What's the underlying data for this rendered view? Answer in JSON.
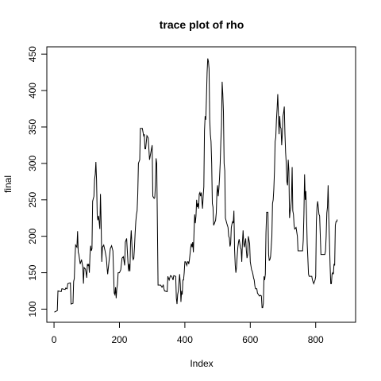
{
  "chart_data": {
    "type": "line",
    "title": "trace plot of rho",
    "xlabel": "Index",
    "ylabel": "final",
    "xlim": [
      -22,
      922
    ],
    "ylim": [
      82,
      460
    ],
    "xticks": [
      0,
      200,
      400,
      600,
      800
    ],
    "yticks": [
      100,
      150,
      200,
      250,
      300,
      350,
      400,
      450
    ],
    "grid": false,
    "series": [
      {
        "values": [
          [
            1,
            96
          ],
          [
            10,
            98
          ],
          [
            12,
            125
          ],
          [
            22,
            124
          ],
          [
            24,
            128
          ],
          [
            34,
            127
          ],
          [
            36,
            129
          ],
          [
            40,
            128
          ],
          [
            42,
            135
          ],
          [
            50,
            136
          ],
          [
            52,
            107
          ],
          [
            58,
            108
          ],
          [
            60,
            138
          ],
          [
            62,
            142
          ],
          [
            64,
            170
          ],
          [
            66,
            188
          ],
          [
            70,
            185
          ],
          [
            72,
            207
          ],
          [
            74,
            178
          ],
          [
            76,
            175
          ],
          [
            80,
            162
          ],
          [
            84,
            168
          ],
          [
            88,
            158
          ],
          [
            90,
            135
          ],
          [
            92,
            157
          ],
          [
            96,
            155
          ],
          [
            98,
            150
          ],
          [
            100,
            143
          ],
          [
            102,
            162
          ],
          [
            104,
            160
          ],
          [
            106,
            162
          ],
          [
            108,
            150
          ],
          [
            110,
            175
          ],
          [
            112,
            187
          ],
          [
            114,
            180
          ],
          [
            116,
            183
          ],
          [
            118,
            248
          ],
          [
            122,
            255
          ],
          [
            124,
            278
          ],
          [
            126,
            285
          ],
          [
            128,
            302
          ],
          [
            130,
            277
          ],
          [
            132,
            230
          ],
          [
            134,
            222
          ],
          [
            136,
            228
          ],
          [
            138,
            220
          ],
          [
            140,
            210
          ],
          [
            142,
            258
          ],
          [
            144,
            220
          ],
          [
            146,
            165
          ],
          [
            148,
            185
          ],
          [
            152,
            188
          ],
          [
            156,
            180
          ],
          [
            160,
            170
          ],
          [
            162,
            158
          ],
          [
            164,
            148
          ],
          [
            168,
            165
          ],
          [
            172,
            183
          ],
          [
            176,
            187
          ],
          [
            180,
            180
          ],
          [
            184,
            122
          ],
          [
            186,
            120
          ],
          [
            188,
            130
          ],
          [
            190,
            115
          ],
          [
            192,
            128
          ],
          [
            194,
            134
          ],
          [
            196,
            150
          ],
          [
            200,
            150
          ],
          [
            204,
            154
          ],
          [
            208,
            170
          ],
          [
            212,
            172
          ],
          [
            216,
            160
          ],
          [
            218,
            192
          ],
          [
            222,
            197
          ],
          [
            226,
            165
          ],
          [
            228,
            152
          ],
          [
            230,
            162
          ],
          [
            232,
            152
          ],
          [
            234,
            192
          ],
          [
            236,
            208
          ],
          [
            240,
            172
          ],
          [
            242,
            168
          ],
          [
            244,
            170
          ],
          [
            246,
            185
          ],
          [
            248,
            205
          ],
          [
            250,
            220
          ],
          [
            252,
            230
          ],
          [
            254,
            235
          ],
          [
            256,
            258
          ],
          [
            258,
            300
          ],
          [
            262,
            305
          ],
          [
            264,
            348
          ],
          [
            270,
            348
          ],
          [
            274,
            338
          ],
          [
            276,
            340
          ],
          [
            278,
            320
          ],
          [
            280,
            320
          ],
          [
            284,
            338
          ],
          [
            288,
            335
          ],
          [
            292,
            305
          ],
          [
            298,
            320
          ],
          [
            300,
            325
          ],
          [
            302,
            255
          ],
          [
            306,
            252
          ],
          [
            308,
            253
          ],
          [
            310,
            270
          ],
          [
            312,
            307
          ],
          [
            314,
            300
          ],
          [
            318,
            133
          ],
          [
            326,
            133
          ],
          [
            330,
            130
          ],
          [
            334,
            133
          ],
          [
            336,
            128
          ],
          [
            338,
            125
          ],
          [
            346,
            124
          ],
          [
            348,
            145
          ],
          [
            352,
            140
          ],
          [
            356,
            146
          ],
          [
            360,
            145
          ],
          [
            364,
            140
          ],
          [
            366,
            146
          ],
          [
            372,
            145
          ],
          [
            374,
            115
          ],
          [
            376,
            107
          ],
          [
            378,
            120
          ],
          [
            380,
            125
          ],
          [
            384,
            148
          ],
          [
            386,
            135
          ],
          [
            388,
            110
          ],
          [
            390,
            125
          ],
          [
            392,
            120
          ],
          [
            394,
            140
          ],
          [
            396,
            140
          ],
          [
            398,
            150
          ],
          [
            400,
            165
          ],
          [
            402,
            165
          ],
          [
            406,
            160
          ],
          [
            408,
            165
          ],
          [
            410,
            165
          ],
          [
            412,
            162
          ],
          [
            414,
            168
          ],
          [
            418,
            185
          ],
          [
            420,
            190
          ],
          [
            422,
            185
          ],
          [
            424,
            192
          ],
          [
            426,
            178
          ],
          [
            428,
            205
          ],
          [
            430,
            230
          ],
          [
            432,
            218
          ],
          [
            434,
            228
          ],
          [
            436,
            250
          ],
          [
            438,
            240
          ],
          [
            440,
            245
          ],
          [
            442,
            238
          ],
          [
            444,
            258
          ],
          [
            446,
            260
          ],
          [
            448,
            255
          ],
          [
            450,
            260
          ],
          [
            454,
            238
          ],
          [
            456,
            255
          ],
          [
            458,
            268
          ],
          [
            460,
            345
          ],
          [
            462,
            365
          ],
          [
            464,
            360
          ],
          [
            466,
            390
          ],
          [
            468,
            425
          ],
          [
            470,
            444
          ],
          [
            472,
            440
          ],
          [
            474,
            430
          ],
          [
            476,
            360
          ],
          [
            478,
            340
          ],
          [
            480,
            330
          ],
          [
            482,
            300
          ],
          [
            484,
            245
          ],
          [
            486,
            240
          ],
          [
            488,
            215
          ],
          [
            494,
            222
          ],
          [
            496,
            232
          ],
          [
            498,
            260
          ],
          [
            500,
            270
          ],
          [
            502,
            255
          ],
          [
            504,
            265
          ],
          [
            506,
            280
          ],
          [
            508,
            300
          ],
          [
            510,
            330
          ],
          [
            512,
            352
          ],
          [
            514,
            412
          ],
          [
            516,
            395
          ],
          [
            518,
            370
          ],
          [
            520,
            300
          ],
          [
            522,
            290
          ],
          [
            524,
            225
          ],
          [
            528,
            218
          ],
          [
            530,
            215
          ],
          [
            532,
            212
          ],
          [
            534,
            200
          ],
          [
            536,
            198
          ],
          [
            538,
            186
          ],
          [
            540,
            190
          ],
          [
            542,
            212
          ],
          [
            544,
            217
          ],
          [
            546,
            220
          ],
          [
            548,
            218
          ],
          [
            550,
            235
          ],
          [
            552,
            182
          ],
          [
            554,
            160
          ],
          [
            556,
            150
          ],
          [
            558,
            158
          ],
          [
            560,
            173
          ],
          [
            562,
            185
          ],
          [
            564,
            192
          ],
          [
            566,
            196
          ],
          [
            570,
            184
          ],
          [
            572,
            182
          ],
          [
            574,
            165
          ],
          [
            576,
            192
          ],
          [
            578,
            208
          ],
          [
            580,
            190
          ],
          [
            582,
            185
          ],
          [
            584,
            192
          ],
          [
            586,
            197
          ],
          [
            588,
            180
          ],
          [
            590,
            170
          ],
          [
            592,
            175
          ],
          [
            594,
            200
          ],
          [
            596,
            195
          ],
          [
            598,
            190
          ],
          [
            600,
            165
          ],
          [
            604,
            154
          ],
          [
            606,
            152
          ],
          [
            608,
            148
          ],
          [
            610,
            143
          ],
          [
            612,
            140
          ],
          [
            614,
            132
          ],
          [
            616,
            128
          ],
          [
            620,
            128
          ],
          [
            622,
            122
          ],
          [
            628,
            118
          ],
          [
            632,
            119
          ],
          [
            634,
            118
          ],
          [
            636,
            102
          ],
          [
            638,
            102
          ],
          [
            640,
            108
          ],
          [
            642,
            145
          ],
          [
            644,
            140
          ],
          [
            646,
            148
          ],
          [
            648,
            205
          ],
          [
            650,
            233
          ],
          [
            654,
            233
          ],
          [
            656,
            175
          ],
          [
            658,
            167
          ],
          [
            660,
            168
          ],
          [
            662,
            172
          ],
          [
            664,
            185
          ],
          [
            666,
            200
          ],
          [
            668,
            245
          ],
          [
            670,
            250
          ],
          [
            672,
            265
          ],
          [
            674,
            290
          ],
          [
            676,
            330
          ],
          [
            678,
            336
          ],
          [
            680,
            360
          ],
          [
            682,
            375
          ],
          [
            684,
            395
          ],
          [
            686,
            368
          ],
          [
            688,
            340
          ],
          [
            690,
            365
          ],
          [
            692,
            350
          ],
          [
            694,
            348
          ],
          [
            696,
            325
          ],
          [
            698,
            340
          ],
          [
            700,
            365
          ],
          [
            702,
            370
          ],
          [
            704,
            378
          ],
          [
            706,
            340
          ],
          [
            708,
            315
          ],
          [
            710,
            300
          ],
          [
            712,
            275
          ],
          [
            714,
            270
          ],
          [
            716,
            305
          ],
          [
            718,
            290
          ],
          [
            720,
            225
          ],
          [
            722,
            235
          ],
          [
            724,
            240
          ],
          [
            726,
            252
          ],
          [
            728,
            295
          ],
          [
            730,
            235
          ],
          [
            732,
            230
          ],
          [
            734,
            215
          ],
          [
            736,
            210
          ],
          [
            740,
            212
          ],
          [
            744,
            200
          ],
          [
            746,
            180
          ],
          [
            758,
            180
          ],
          [
            760,
            180
          ],
          [
            762,
            195
          ],
          [
            764,
            230
          ],
          [
            766,
            285
          ],
          [
            768,
            250
          ],
          [
            770,
            262
          ],
          [
            772,
            230
          ],
          [
            774,
            190
          ],
          [
            776,
            170
          ],
          [
            778,
            148
          ],
          [
            780,
            145
          ],
          [
            788,
            145
          ],
          [
            790,
            140
          ],
          [
            794,
            135
          ],
          [
            798,
            140
          ],
          [
            800,
            145
          ],
          [
            802,
            220
          ],
          [
            804,
            240
          ],
          [
            806,
            248
          ],
          [
            808,
            240
          ],
          [
            810,
            230
          ],
          [
            812,
            228
          ],
          [
            816,
            175
          ],
          [
            828,
            175
          ],
          [
            830,
            180
          ],
          [
            832,
            200
          ],
          [
            834,
            232
          ],
          [
            836,
            240
          ],
          [
            838,
            270
          ],
          [
            840,
            225
          ],
          [
            842,
            195
          ],
          [
            844,
            160
          ],
          [
            846,
            135
          ],
          [
            848,
            135
          ],
          [
            850,
            148
          ],
          [
            852,
            150
          ],
          [
            854,
            148
          ],
          [
            856,
            162
          ],
          [
            858,
            160
          ],
          [
            860,
            215
          ],
          [
            862,
            220
          ],
          [
            864,
            220
          ],
          [
            866,
            223
          ]
        ]
      }
    ]
  }
}
